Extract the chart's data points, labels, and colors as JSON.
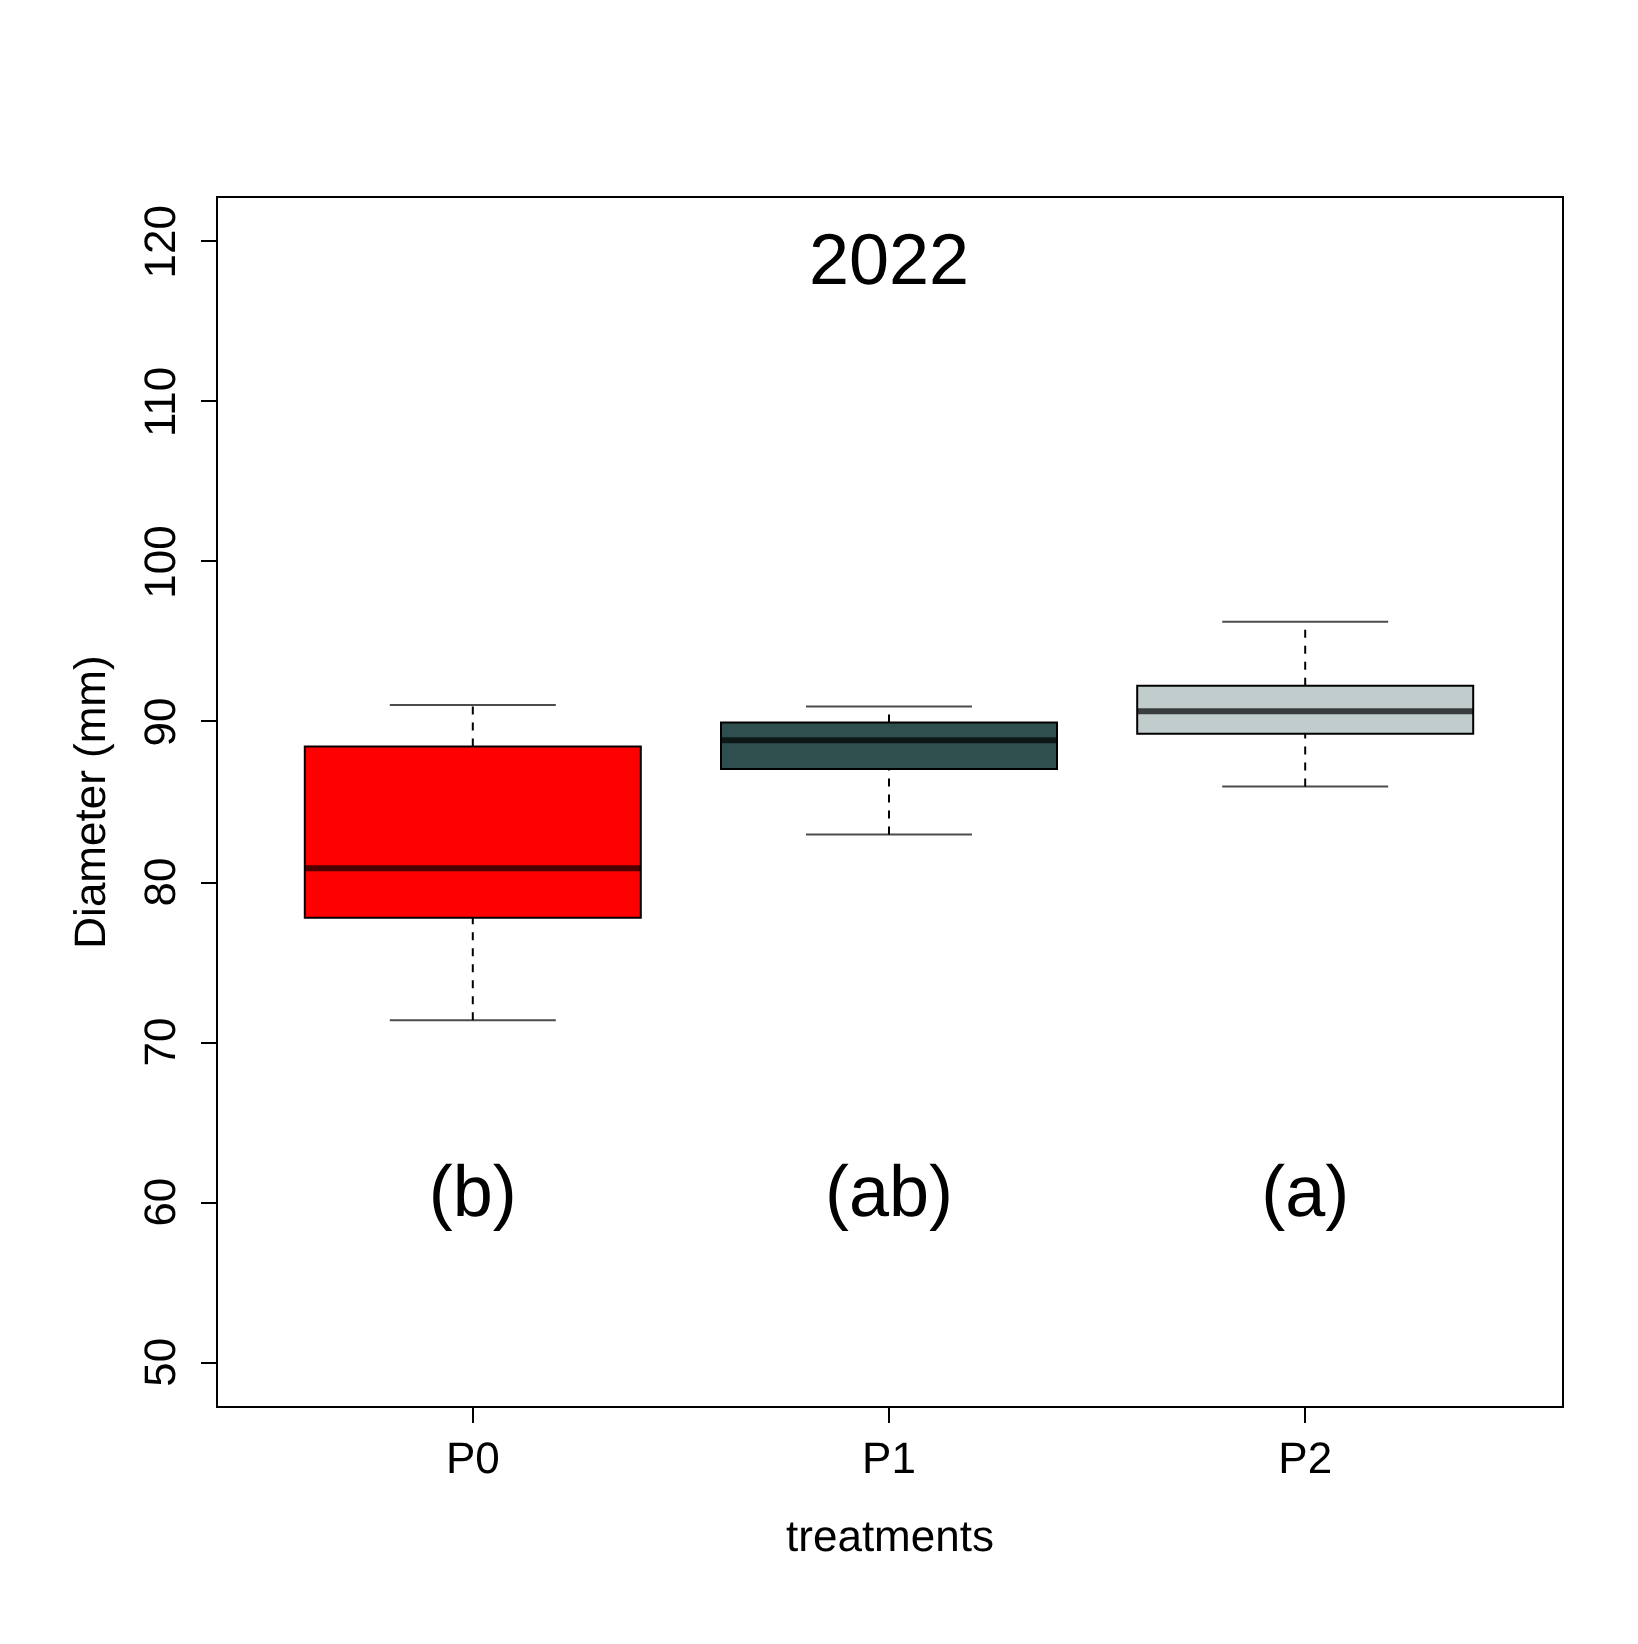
{
  "chart_data": {
    "type": "box",
    "title": "2022",
    "xlabel": "treatments",
    "ylabel": "Diameter (mm)",
    "categories": [
      "P0",
      "P1",
      "P2"
    ],
    "colors": [
      "#ff0000",
      "#2f4f4f",
      "#c1cdcd"
    ],
    "boxes": [
      {
        "low": 71.3,
        "q1": 77.7,
        "median": 80.8,
        "q3": 88.4,
        "high": 91.0
      },
      {
        "low": 82.9,
        "q1": 87.0,
        "median": 88.8,
        "q3": 89.9,
        "high": 90.9
      },
      {
        "low": 85.9,
        "q1": 89.2,
        "median": 90.6,
        "q3": 92.2,
        "high": 96.2
      }
    ],
    "ylim": [
      47.2,
      122.8
    ],
    "yticks": [
      50,
      60,
      70,
      80,
      90,
      100,
      110,
      120
    ],
    "annotations": [
      "(b)",
      "(ab)",
      "(a)"
    ]
  }
}
